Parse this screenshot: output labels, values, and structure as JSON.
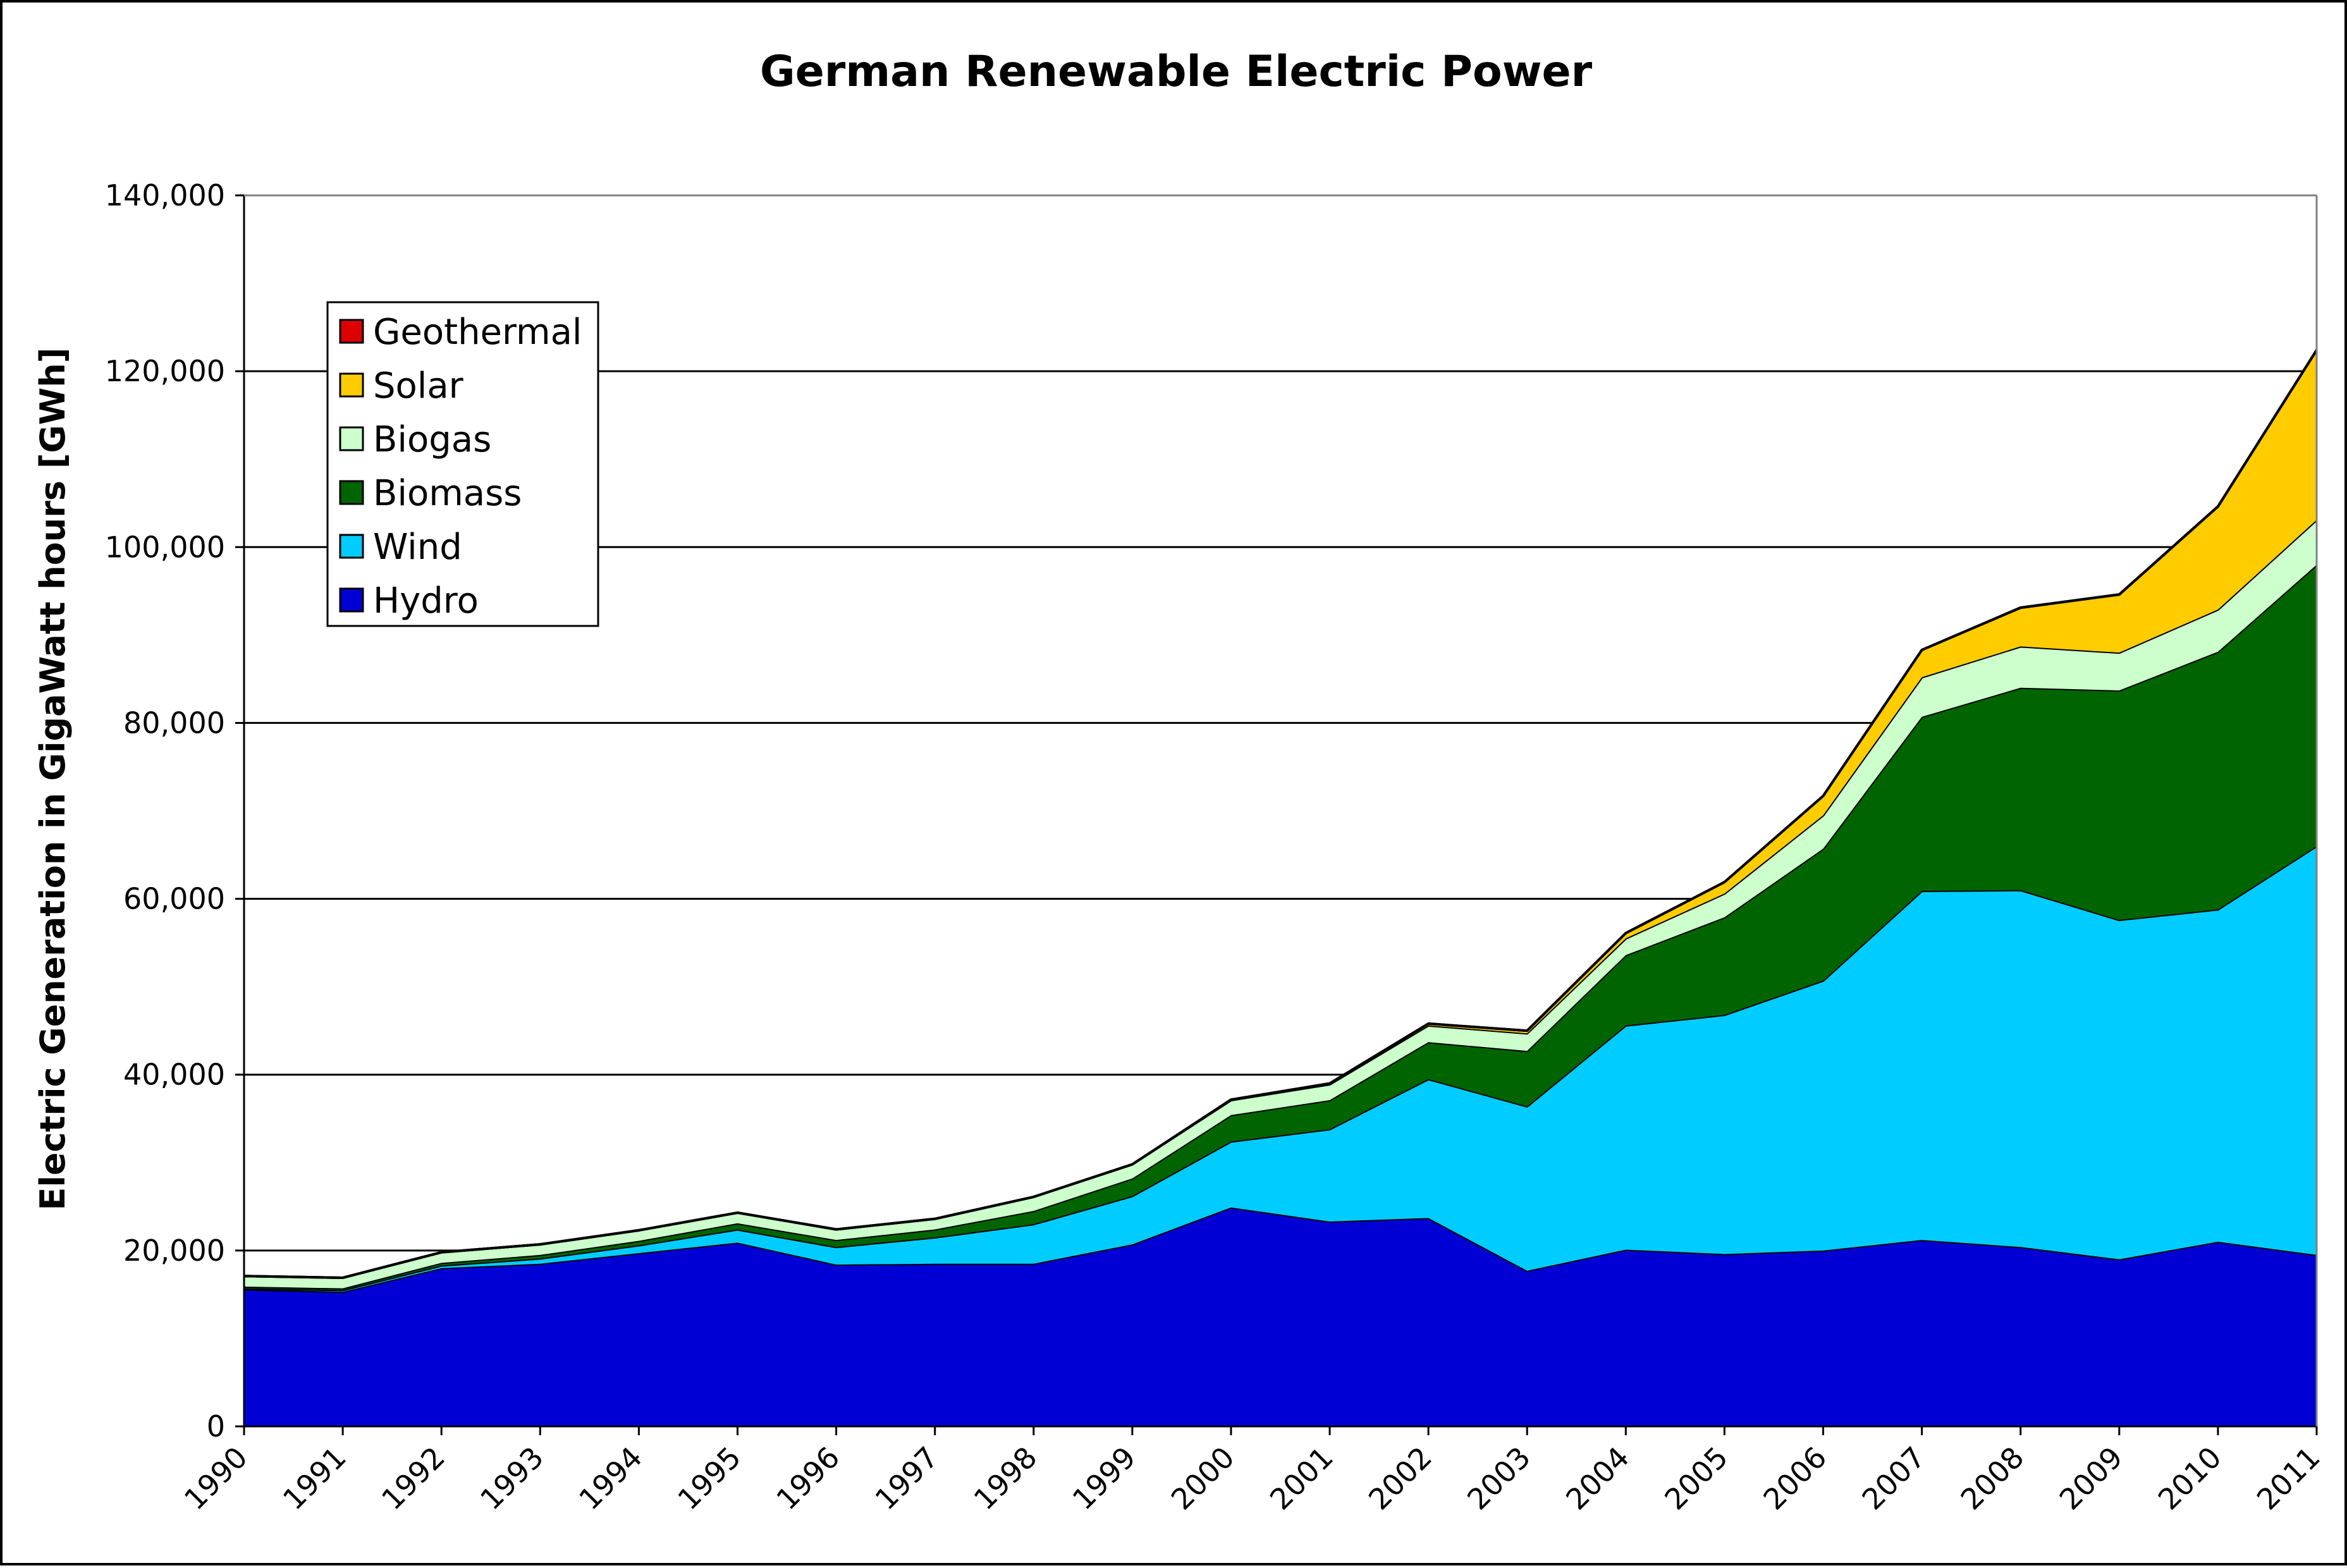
{
  "chart_data": {
    "type": "area",
    "stacked": true,
    "title": "German Renewable Electric Power",
    "xlabel": "",
    "ylabel": "Electric Generation in GigaWatt hours [GWh]",
    "ylim": [
      0,
      140000
    ],
    "yticks": [
      0,
      20000,
      40000,
      60000,
      80000,
      100000,
      120000,
      140000
    ],
    "ytick_labels": [
      "0",
      "20,000",
      "40,000",
      "60,000",
      "80,000",
      "100,000",
      "120,000",
      "140,000"
    ],
    "grid": "horizontal",
    "legend_position": "top-left",
    "x": [
      "1990",
      "1991",
      "1992",
      "1993",
      "1994",
      "1995",
      "1996",
      "1997",
      "1998",
      "1999",
      "2000",
      "2001",
      "2002",
      "2003",
      "2004",
      "2005",
      "2006",
      "2007",
      "2008",
      "2009",
      "2010",
      "2011"
    ],
    "series": [
      {
        "name": "Hydro",
        "color": "#0000D4",
        "values": [
          15600,
          15300,
          18000,
          18500,
          19700,
          20900,
          18400,
          18500,
          18500,
          20700,
          24900,
          23300,
          23700,
          17700,
          20100,
          19600,
          20000,
          21200,
          20400,
          19000,
          21000,
          19500
        ]
      },
      {
        "name": "Wind",
        "color": "#00CCFF",
        "values": [
          100,
          200,
          300,
          600,
          900,
          1500,
          2000,
          3000,
          4500,
          5500,
          7500,
          10500,
          15800,
          18700,
          25500,
          27200,
          30700,
          39700,
          40600,
          38600,
          37800,
          46500
        ]
      },
      {
        "name": "Biomass",
        "color": "#006400",
        "values": [
          200,
          200,
          300,
          400,
          500,
          700,
          800,
          900,
          1500,
          2000,
          3000,
          3300,
          4200,
          6300,
          8000,
          11100,
          15000,
          19800,
          23000,
          26100,
          29300,
          32000
        ]
      },
      {
        "name": "Biogas",
        "color": "#CCFFCC",
        "values": [
          1200,
          1200,
          1200,
          1200,
          1200,
          1200,
          1200,
          1200,
          1600,
          1600,
          1700,
          1800,
          1900,
          2000,
          1900,
          2700,
          3800,
          4500,
          4700,
          4300,
          4800,
          5100
        ]
      },
      {
        "name": "Solar",
        "color": "#FFCC00",
        "values": [
          0,
          0,
          0,
          0,
          0,
          0,
          0,
          0,
          0,
          0,
          60,
          100,
          200,
          300,
          600,
          1300,
          2200,
          3100,
          4400,
          6600,
          11700,
          19300
        ]
      },
      {
        "name": "Geothermal",
        "color": "#DD0000",
        "values": [
          0,
          0,
          0,
          0,
          0,
          0,
          0,
          0,
          0,
          0,
          0,
          0,
          0,
          0,
          0,
          0,
          0,
          0,
          18,
          19,
          28,
          19
        ]
      }
    ]
  }
}
